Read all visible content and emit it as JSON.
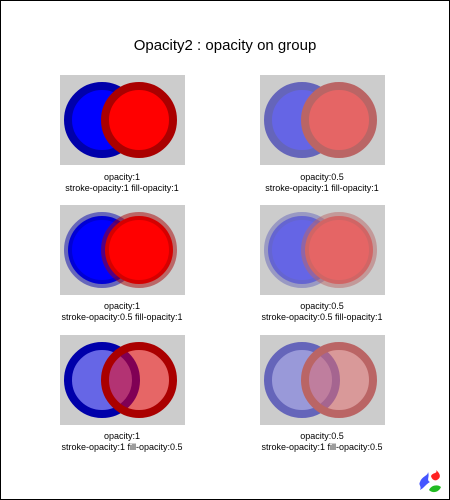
{
  "page": {
    "title": "Opacity2 : opacity on group"
  },
  "colors": {
    "panel_bg": "#cccccc",
    "blue_fill": "#0000ff",
    "blue_stroke": "#0000aa",
    "red_fill": "#ff0000",
    "red_stroke": "#aa0000"
  },
  "cells": [
    {
      "opacity": 1,
      "stroke_opacity": 1,
      "fill_opacity": 1,
      "line1": "opacity:1",
      "line2": "stroke-opacity:1 fill-opacity:1"
    },
    {
      "opacity": 0.5,
      "stroke_opacity": 1,
      "fill_opacity": 1,
      "line1": "opacity:0.5",
      "line2": "stroke-opacity:1 fill-opacity:1"
    },
    {
      "opacity": 1,
      "stroke_opacity": 0.5,
      "fill_opacity": 1,
      "line1": "opacity:1",
      "line2": "stroke-opacity:0.5 fill-opacity:1"
    },
    {
      "opacity": 0.5,
      "stroke_opacity": 0.5,
      "fill_opacity": 1,
      "line1": "opacity:0.5",
      "line2": "stroke-opacity:0.5 fill-opacity:1"
    },
    {
      "opacity": 1,
      "stroke_opacity": 1,
      "fill_opacity": 0.5,
      "line1": "opacity:1",
      "line2": "stroke-opacity:1 fill-opacity:0.5"
    },
    {
      "opacity": 0.5,
      "stroke_opacity": 1,
      "fill_opacity": 0.5,
      "line1": "opacity:0.5",
      "line2": "stroke-opacity:1 fill-opacity:0.5"
    }
  ],
  "logo": {
    "icon": "svg-logo-icon"
  }
}
